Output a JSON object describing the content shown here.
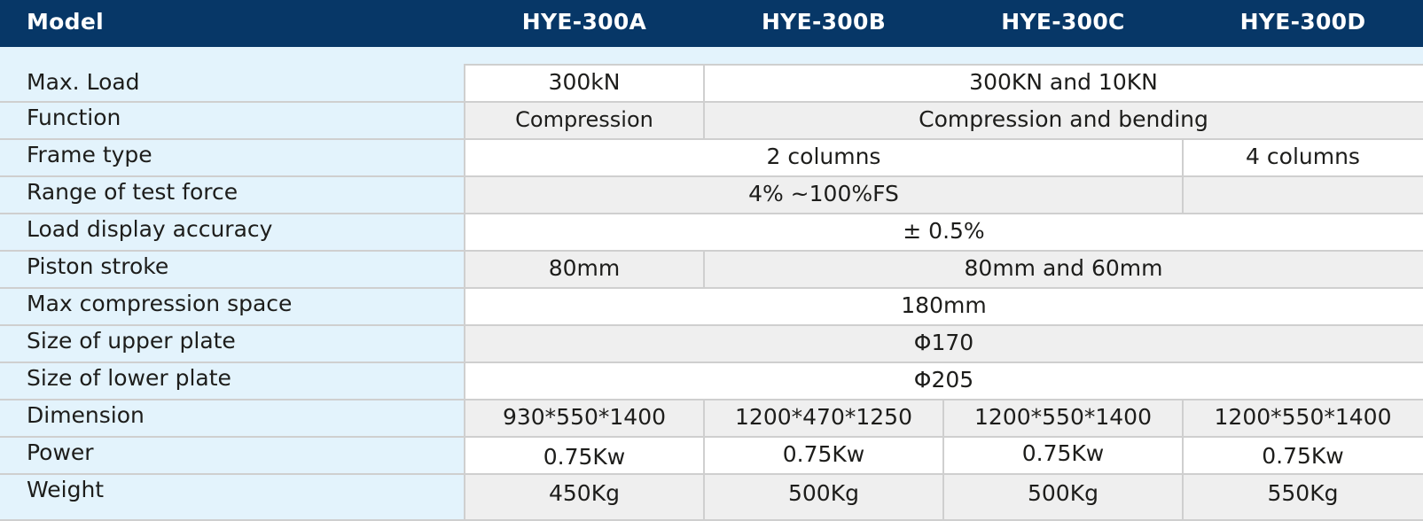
{
  "header": {
    "model_label": "Model",
    "models": [
      "HYE-300A",
      "HYE-300B",
      "HYE-300C",
      "HYE-300D"
    ]
  },
  "rows": [
    {
      "label": "Max. Load",
      "cells": [
        "300kN",
        "300KN and 10KN"
      ]
    },
    {
      "label": "Function",
      "cells": [
        "Compression",
        "Compression and bending"
      ]
    },
    {
      "label": "Frame type",
      "cells": [
        "2 columns",
        "4 columns"
      ]
    },
    {
      "label": "Range of test force",
      "cells": [
        "4% ~100%FS",
        ""
      ]
    },
    {
      "label": "Load display accuracy",
      "cells": [
        "± 0.5%"
      ]
    },
    {
      "label": "Piston stroke",
      "cells": [
        "80mm",
        "80mm and 60mm"
      ]
    },
    {
      "label": "Max compression space",
      "cells": [
        "180mm"
      ]
    },
    {
      "label": "Size of upper plate",
      "cells": [
        "Φ170"
      ]
    },
    {
      "label": "Size of lower plate",
      "cells": [
        "Φ205"
      ]
    },
    {
      "label": "Dimension",
      "cells": [
        "930*550*1400",
        "1200*470*1250",
        "1200*550*1400",
        "1200*550*1400"
      ]
    },
    {
      "label": "Power",
      "cells": [
        "0.75Kw",
        "0.75Kw",
        "0.75Kw",
        "0.75Kw"
      ]
    },
    {
      "label": "Weight",
      "cells": [
        "450Kg",
        "500Kg",
        "500Kg",
        "550Kg"
      ]
    }
  ],
  "colors": {
    "header_bg": "#073767",
    "label_bg": "#e3f3fc",
    "row_white": "#ffffff",
    "row_grey": "#efefef",
    "grid": "#cfcfcf"
  }
}
